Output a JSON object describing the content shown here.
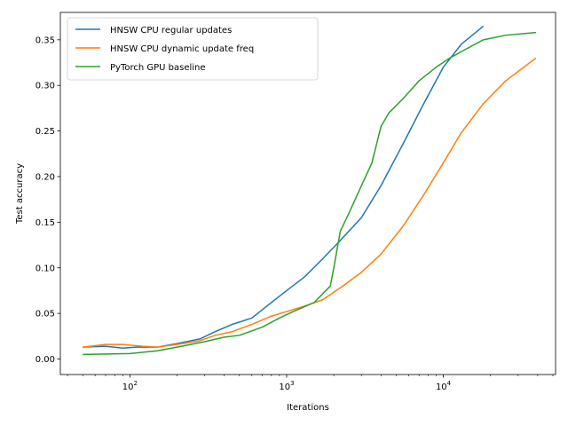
{
  "chart_data": {
    "type": "line",
    "title": "",
    "xlabel": "Iterations",
    "ylabel": "Test accuracy",
    "xscale": "log",
    "xlim": [
      36,
      52000
    ],
    "ylim": [
      -0.017,
      0.38
    ],
    "x_ticks": [
      {
        "value": 100,
        "base": "10",
        "exp": "2"
      },
      {
        "value": 1000,
        "base": "10",
        "exp": "3"
      },
      {
        "value": 10000,
        "base": "10",
        "exp": "4"
      }
    ],
    "y_ticks": [
      {
        "value": 0.0,
        "label": "0.00"
      },
      {
        "value": 0.05,
        "label": "0.05"
      },
      {
        "value": 0.1,
        "label": "0.10"
      },
      {
        "value": 0.15,
        "label": "0.15"
      },
      {
        "value": 0.2,
        "label": "0.20"
      },
      {
        "value": 0.25,
        "label": "0.25"
      },
      {
        "value": 0.3,
        "label": "0.30"
      },
      {
        "value": 0.35,
        "label": "0.35"
      }
    ],
    "grid": false,
    "legend_position": "upper-left",
    "series": [
      {
        "name": "HNSW CPU regular updates",
        "color": "#1f77b4",
        "x": [
          50,
          70,
          90,
          110,
          150,
          200,
          280,
          350,
          450,
          600,
          800,
          1000,
          1300,
          1700,
          2200,
          3000,
          4000,
          5500,
          7500,
          10000,
          13000,
          18000
        ],
        "y": [
          0.013,
          0.014,
          0.012,
          0.013,
          0.013,
          0.017,
          0.022,
          0.03,
          0.038,
          0.045,
          0.062,
          0.075,
          0.09,
          0.11,
          0.13,
          0.155,
          0.19,
          0.235,
          0.28,
          0.32,
          0.345,
          0.365
        ]
      },
      {
        "name": "HNSW CPU dynamic update freq",
        "color": "#ff7f0e",
        "x": [
          50,
          70,
          90,
          120,
          150,
          200,
          280,
          350,
          450,
          600,
          800,
          1000,
          1300,
          1700,
          2200,
          3000,
          4000,
          5500,
          7500,
          10000,
          13000,
          18000,
          25000,
          39000
        ],
        "y": [
          0.013,
          0.016,
          0.016,
          0.014,
          0.013,
          0.016,
          0.02,
          0.026,
          0.03,
          0.038,
          0.047,
          0.052,
          0.058,
          0.065,
          0.078,
          0.095,
          0.115,
          0.145,
          0.18,
          0.215,
          0.248,
          0.28,
          0.305,
          0.33
        ]
      },
      {
        "name": "PyTorch GPU baseline",
        "color": "#2ca02c",
        "x": [
          50,
          100,
          150,
          200,
          300,
          400,
          500,
          700,
          900,
          1100,
          1500,
          1900,
          2000,
          2200,
          2500,
          3000,
          3500,
          4000,
          4500,
          5500,
          7000,
          9000,
          11000,
          14000,
          18000,
          25000,
          39000
        ],
        "y": [
          0.005,
          0.006,
          0.009,
          0.013,
          0.019,
          0.024,
          0.026,
          0.035,
          0.045,
          0.052,
          0.062,
          0.08,
          0.1,
          0.14,
          0.16,
          0.19,
          0.215,
          0.255,
          0.27,
          0.285,
          0.305,
          0.32,
          0.33,
          0.34,
          0.35,
          0.355,
          0.358
        ]
      }
    ]
  }
}
